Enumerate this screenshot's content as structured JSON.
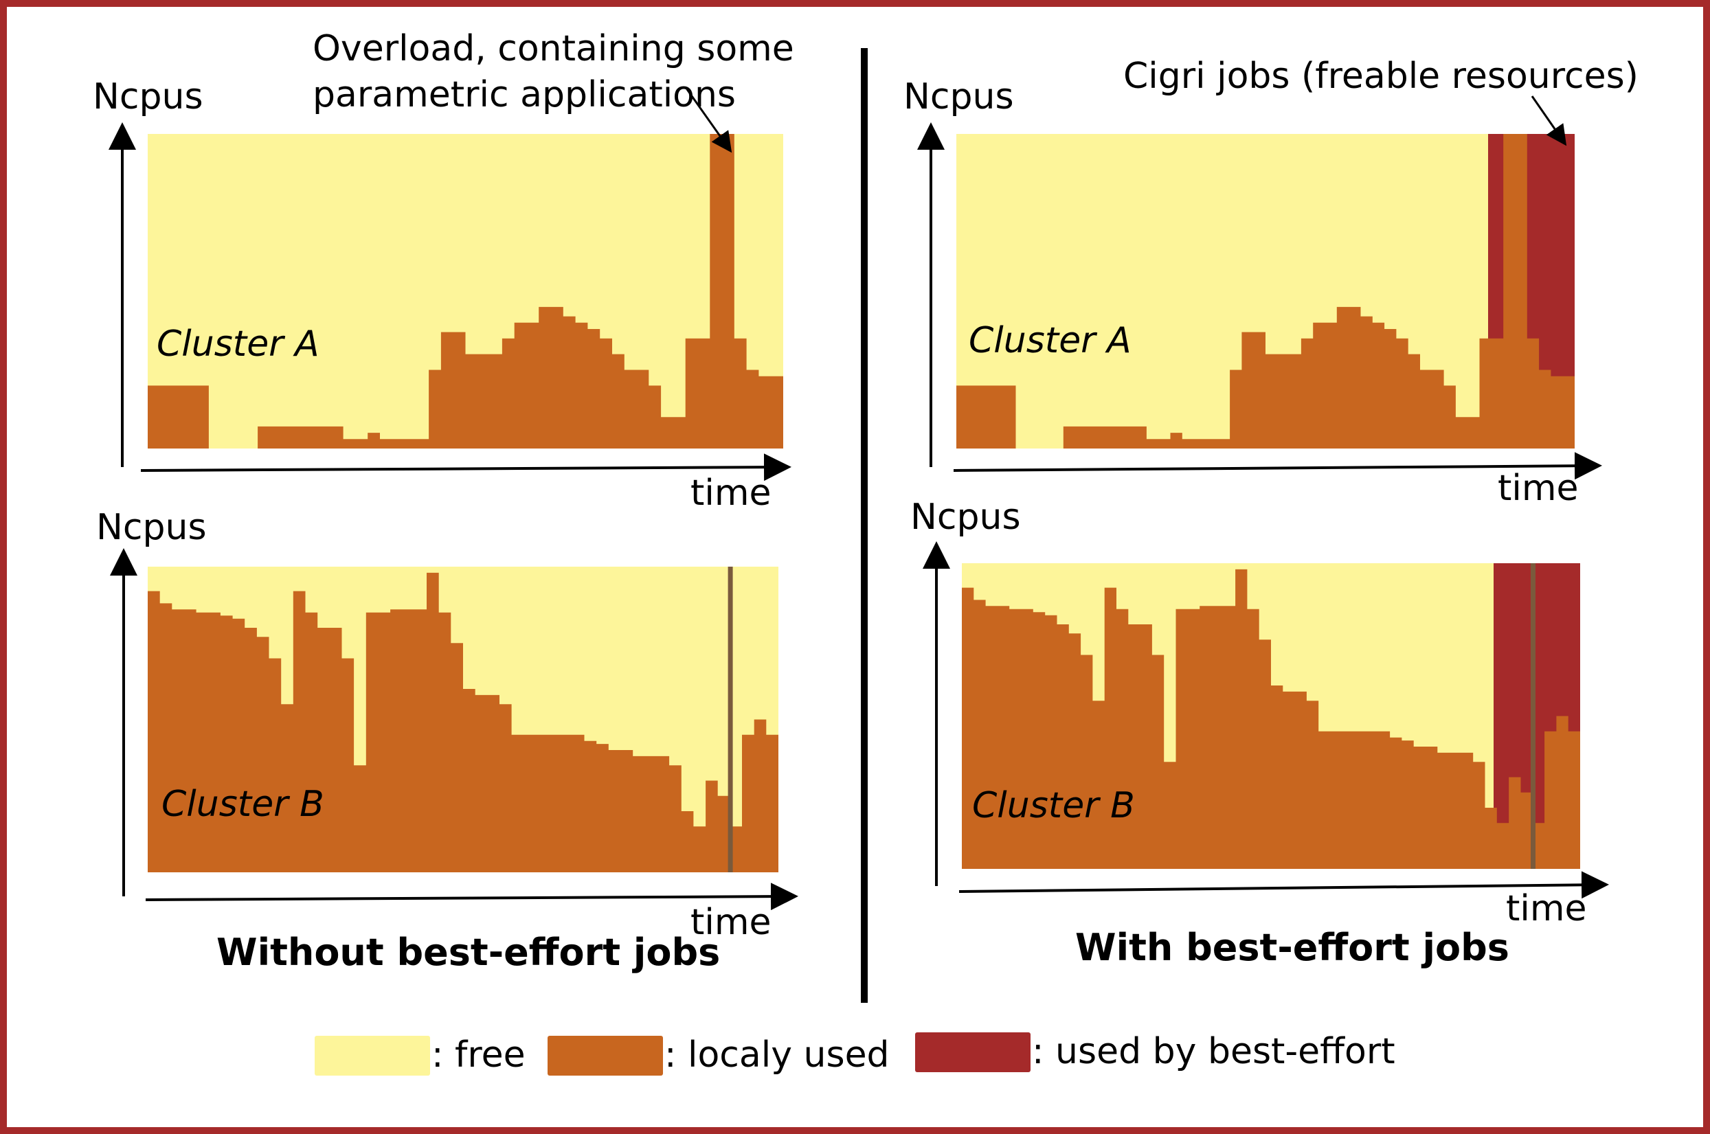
{
  "colors": {
    "free": "#fdf59a",
    "local": "#c8661f",
    "besteffort": "#a52a2a",
    "border": "#a52a2a",
    "marker": "#7a5a3c"
  },
  "axis": {
    "y_label": "Ncpus",
    "x_label": "time"
  },
  "left": {
    "caption": "Without best-effort jobs",
    "annotation": [
      "Overload, containing some",
      "parametric applications"
    ],
    "cluster_a_label": "Cluster A",
    "cluster_b_label": "Cluster B"
  },
  "right": {
    "caption": "With best-effort jobs",
    "annotation": "Cigri jobs (freable resources)",
    "cluster_a_label": "Cluster A",
    "cluster_b_label": "Cluster B"
  },
  "legend": [
    {
      "label": ": free",
      "color_key": "free"
    },
    {
      "label": ": localy used",
      "color_key": "local"
    },
    {
      "label": ": used by best-effort",
      "color_key": "besteffort"
    }
  ],
  "profiles": {
    "cluster_a": [
      0.2,
      0.2,
      0.2,
      0.2,
      0.2,
      0.0,
      0.0,
      0.0,
      0.0,
      0.07,
      0.07,
      0.07,
      0.07,
      0.07,
      0.07,
      0.07,
      0.03,
      0.03,
      0.05,
      0.03,
      0.03,
      0.03,
      0.03,
      0.25,
      0.37,
      0.37,
      0.3,
      0.3,
      0.3,
      0.35,
      0.4,
      0.4,
      0.45,
      0.45,
      0.42,
      0.4,
      0.38,
      0.35,
      0.3,
      0.25,
      0.25,
      0.2,
      0.1,
      0.1,
      0.35,
      0.35,
      1.0,
      1.0,
      0.35,
      0.25,
      0.23,
      0.23
    ],
    "cluster_b": [
      0.92,
      0.88,
      0.86,
      0.86,
      0.85,
      0.85,
      0.84,
      0.83,
      0.8,
      0.77,
      0.7,
      0.55,
      0.92,
      0.85,
      0.8,
      0.8,
      0.7,
      0.35,
      0.85,
      0.85,
      0.86,
      0.86,
      0.86,
      0.98,
      0.85,
      0.75,
      0.6,
      0.58,
      0.58,
      0.55,
      0.45,
      0.45,
      0.45,
      0.45,
      0.45,
      0.45,
      0.43,
      0.42,
      0.4,
      0.4,
      0.38,
      0.38,
      0.38,
      0.35,
      0.2,
      0.15,
      0.3,
      0.25,
      0.15,
      0.45,
      0.5,
      0.45
    ]
  },
  "besteffort": {
    "cluster_a_start_fraction": 0.86,
    "cluster_b_start_fraction": 0.86,
    "marker_fraction": 0.92
  }
}
